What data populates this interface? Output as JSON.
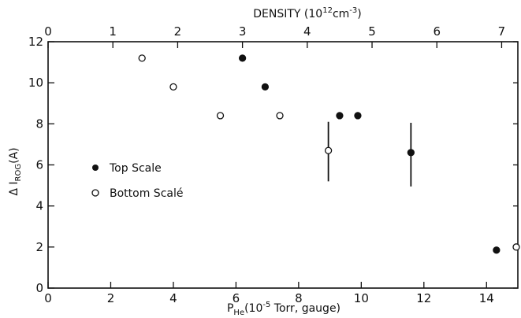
{
  "chart_data": {
    "type": "scatter",
    "title": "",
    "xlabel": "P",
    "xlabel_sub": "He",
    "xlabel_rest": "(10",
    "xlabel_exp": "-5",
    "xlabel_tail": " Torr, gauge)",
    "x2label": "DENSITY (10",
    "x2label_exp": "12",
    "x2label_mid": "cm",
    "x2label_exp2": "-3",
    "x2label_tail": ")",
    "ylabel": "Δ I",
    "ylabel_sub": "ROG",
    "ylabel_tail": "(A)",
    "xlim": [
      0,
      15
    ],
    "x2lim": [
      0,
      7.25
    ],
    "ylim": [
      0,
      12
    ],
    "x_ticks": [
      0,
      2,
      4,
      6,
      8,
      10,
      12,
      14
    ],
    "x2_ticks": [
      0,
      1,
      2,
      3,
      4,
      5,
      6,
      7
    ],
    "y_ticks": [
      0,
      2,
      4,
      6,
      8,
      10,
      12
    ],
    "series": [
      {
        "name": "Top Scale",
        "axis": "top",
        "marker": "filled-circle",
        "points": [
          {
            "x": 3.0,
            "y": 11.2
          },
          {
            "x": 3.35,
            "y": 9.8
          },
          {
            "x": 4.5,
            "y": 8.4
          },
          {
            "x": 4.78,
            "y": 8.4
          },
          {
            "x": 5.6,
            "y": 6.6,
            "yerr": [
              4.95,
              8.05
            ]
          },
          {
            "x": 6.92,
            "y": 1.85
          }
        ]
      },
      {
        "name": "Bottom Scale",
        "axis": "bottom",
        "marker": "open-circle",
        "points": [
          {
            "x": 3.0,
            "y": 11.2
          },
          {
            "x": 4.0,
            "y": 9.8
          },
          {
            "x": 5.5,
            "y": 8.4
          },
          {
            "x": 7.4,
            "y": 8.4
          },
          {
            "x": 8.95,
            "y": 6.7,
            "yerr": [
              5.2,
              8.1
            ]
          },
          {
            "x": 14.95,
            "y": 2.0
          }
        ]
      }
    ],
    "legend": {
      "position": "left-middle",
      "entries": [
        "Top Scale",
        "Bottom Scalé"
      ]
    },
    "grid": false
  }
}
